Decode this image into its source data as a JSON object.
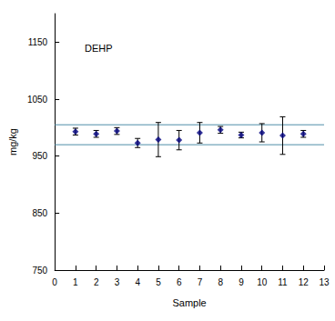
{
  "chart_data": {
    "type": "scatter",
    "title": "DEHP",
    "x_label": "Sample",
    "y_label": "mg/kg",
    "x": [
      1,
      2,
      3,
      4,
      5,
      6,
      7,
      8,
      9,
      10,
      11,
      12
    ],
    "values": [
      993,
      989,
      994,
      973,
      979,
      978,
      991,
      996,
      987,
      991,
      986,
      989
    ],
    "errors": [
      6,
      6,
      6,
      8,
      30,
      17,
      18,
      6,
      5,
      16,
      33,
      6
    ],
    "reference_lines": [
      970,
      1005
    ],
    "color": "#000080",
    "marker": "diamond",
    "xlim": [
      0,
      13
    ],
    "xticks": [
      0,
      1,
      2,
      3,
      4,
      5,
      6,
      7,
      8,
      9,
      10,
      11,
      12,
      13
    ],
    "ylim": [
      750,
      1200
    ],
    "yticks": [
      750,
      850,
      950,
      1050,
      1150
    ],
    "grid": false
  }
}
